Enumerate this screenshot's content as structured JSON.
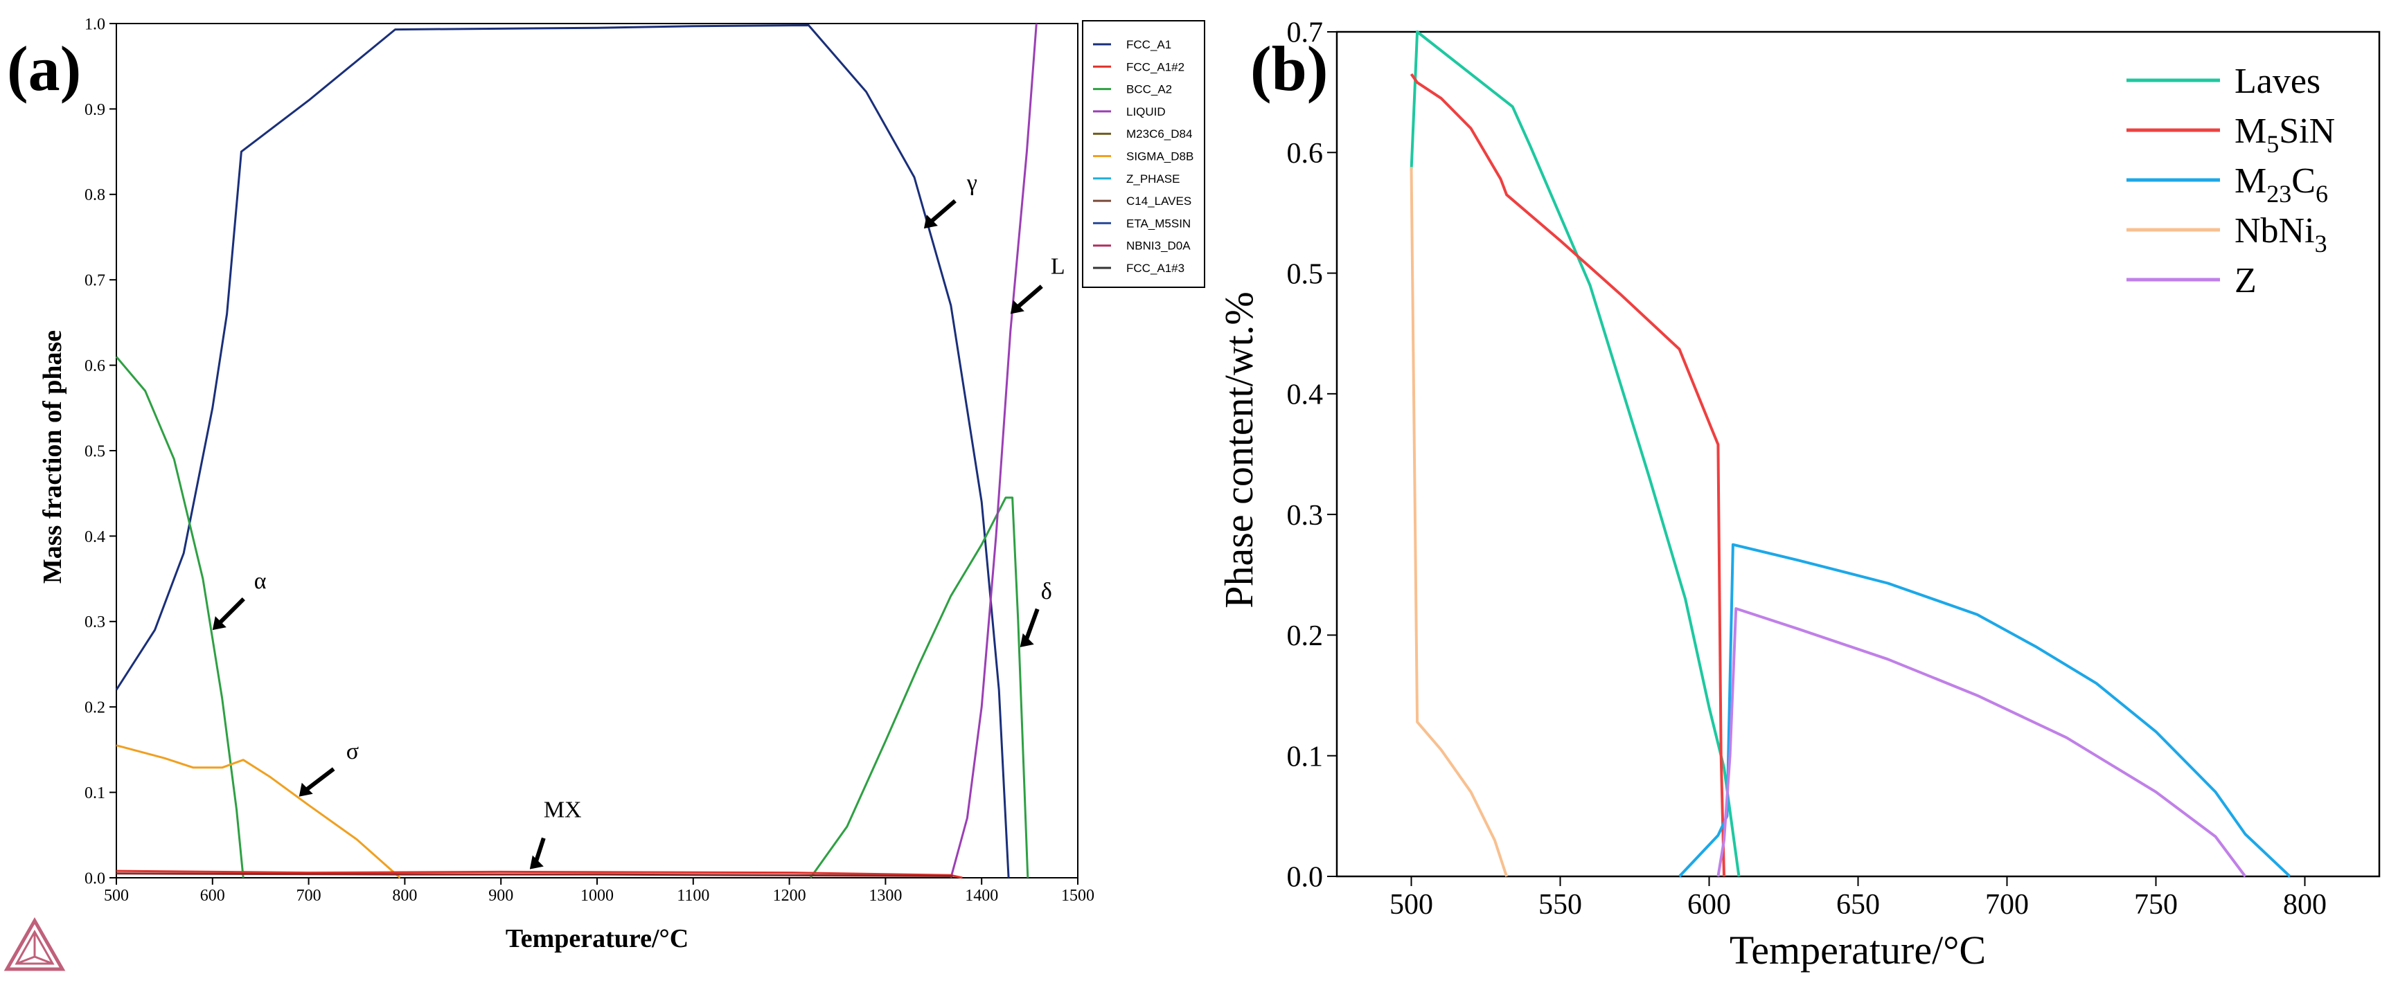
{
  "chart_data": [
    {
      "panel_label": "(a)",
      "type": "line",
      "title": "",
      "xlabel": "Temperature/°C",
      "ylabel": "Mass fraction of phase",
      "xlim": [
        500,
        1500
      ],
      "ylim": [
        0,
        1.0
      ],
      "xticks": [
        "500",
        "600",
        "700",
        "800",
        "900",
        "1000",
        "1100",
        "1200",
        "1300",
        "1400",
        "1500"
      ],
      "yticks": [
        "0.0",
        "0.1",
        "0.2",
        "0.3",
        "0.4",
        "0.5",
        "0.6",
        "0.7",
        "0.8",
        "0.9",
        "1.0"
      ],
      "legend": {
        "position": "right-outside",
        "entries": [
          {
            "label": "FCC_A1",
            "color": "#1a2f7a"
          },
          {
            "label": "FCC_A1#2",
            "color": "#e0302a"
          },
          {
            "label": "BCC_A2",
            "color": "#2ea043"
          },
          {
            "label": "LIQUID",
            "color": "#9b3fb5"
          },
          {
            "label": "M23C6_D84",
            "color": "#6b5a1e"
          },
          {
            "label": "SIGMA_D8B",
            "color": "#f0a020"
          },
          {
            "label": "Z_PHASE",
            "color": "#20b0d8"
          },
          {
            "label": "C14_LAVES",
            "color": "#7a4a3a"
          },
          {
            "label": "ETA_M5SIN",
            "color": "#2a4a9a"
          },
          {
            "label": "NBNI3_D0A",
            "color": "#b03060"
          },
          {
            "label": "FCC_A1#3",
            "color": "#333333"
          }
        ]
      },
      "series": [
        {
          "name": "FCC_A1",
          "color": "#1a2f7a",
          "points": [
            [
              500,
              0.22
            ],
            [
              540,
              0.29
            ],
            [
              570,
              0.38
            ],
            [
              600,
              0.55
            ],
            [
              615,
              0.66
            ],
            [
              630,
              0.85
            ],
            [
              700,
              0.91
            ],
            [
              790,
              0.993
            ],
            [
              1000,
              0.995
            ],
            [
              1100,
              0.997
            ],
            [
              1220,
              0.998
            ],
            [
              1280,
              0.92
            ],
            [
              1330,
              0.82
            ],
            [
              1368,
              0.67
            ],
            [
              1400,
              0.44
            ],
            [
              1418,
              0.22
            ],
            [
              1428,
              0.0
            ]
          ]
        },
        {
          "name": "BCC_A2 (α)",
          "color": "#2ea043",
          "points": [
            [
              500,
              0.61
            ],
            [
              530,
              0.57
            ],
            [
              560,
              0.49
            ],
            [
              590,
              0.35
            ],
            [
              610,
              0.21
            ],
            [
              625,
              0.08
            ],
            [
              632,
              0.0
            ]
          ]
        },
        {
          "name": "BCC_A2 (δ)",
          "color": "#2ea043",
          "points": [
            [
              1222,
              0.0
            ],
            [
              1260,
              0.06
            ],
            [
              1300,
              0.16
            ],
            [
              1335,
              0.25
            ],
            [
              1368,
              0.33
            ],
            [
              1400,
              0.39
            ],
            [
              1425,
              0.445
            ],
            [
              1432,
              0.445
            ],
            [
              1438,
              0.3
            ],
            [
              1448,
              0.0
            ]
          ]
        },
        {
          "name": "LIQUID",
          "color": "#9b3fb5",
          "points": [
            [
              1368,
              0.0
            ],
            [
              1385,
              0.07
            ],
            [
              1400,
              0.2
            ],
            [
              1415,
              0.4
            ],
            [
              1430,
              0.64
            ],
            [
              1447,
              0.85
            ],
            [
              1457,
              1.0
            ]
          ]
        },
        {
          "name": "SIGMA_D8B (σ)",
          "color": "#f0a020",
          "points": [
            [
              500,
              0.155
            ],
            [
              550,
              0.14
            ],
            [
              580,
              0.129
            ],
            [
              610,
              0.129
            ],
            [
              632,
              0.138
            ],
            [
              660,
              0.118
            ],
            [
              700,
              0.085
            ],
            [
              750,
              0.045
            ],
            [
              795,
              0.0
            ]
          ]
        },
        {
          "name": "MX",
          "color": "#e0302a",
          "points": [
            [
              500,
              0.008
            ],
            [
              700,
              0.006
            ],
            [
              900,
              0.007
            ],
            [
              1200,
              0.006
            ],
            [
              1368,
              0.003
            ],
            [
              1380,
              0.0
            ]
          ]
        },
        {
          "name": "FCC_A1#3",
          "color": "#8b2a2a",
          "points": [
            [
              500,
              0.005
            ],
            [
              800,
              0.004
            ],
            [
              1000,
              0.004
            ],
            [
              1370,
              0.002
            ]
          ]
        }
      ],
      "annotations": [
        {
          "text": "α",
          "x": 600,
          "y": 0.29
        },
        {
          "text": "σ",
          "x": 690,
          "y": 0.095
        },
        {
          "text": "MX",
          "x": 930,
          "y": 0.01
        },
        {
          "text": "γ",
          "x": 1340,
          "y": 0.76
        },
        {
          "text": "L",
          "x": 1430,
          "y": 0.66
        },
        {
          "text": "δ",
          "x": 1440,
          "y": 0.27
        }
      ]
    },
    {
      "panel_label": "(b)",
      "type": "line",
      "title": "",
      "xlabel": "Temperature/°C",
      "ylabel": "Phase content/wt.%",
      "xlim": [
        475,
        825
      ],
      "ylim": [
        0,
        0.7
      ],
      "xticks": [
        "500",
        "550",
        "600",
        "650",
        "700",
        "750",
        "800"
      ],
      "yticks": [
        "0.0",
        "0.1",
        "0.2",
        "0.3",
        "0.4",
        "0.5",
        "0.6",
        "0.7"
      ],
      "legend": {
        "position": "top-right",
        "entries": [
          {
            "base": "Laves",
            "sub": "",
            "rest": "",
            "color": "#1ec8a0"
          },
          {
            "base": "M",
            "sub": "5",
            "rest": "SiN",
            "color": "#ee4040"
          },
          {
            "base": "M",
            "sub": "23",
            "rest": "C",
            "sub2": "6",
            "color": "#1ca8e8"
          },
          {
            "base": "NbNi",
            "sub": "3",
            "rest": "",
            "color": "#f8c090"
          },
          {
            "base": "Z",
            "sub": "",
            "rest": "",
            "color": "#c080e8"
          }
        ]
      },
      "series": [
        {
          "name": "Laves",
          "color": "#1ec8a0",
          "points": [
            [
              500,
              0.585
            ],
            [
              502,
              0.7
            ],
            [
              534,
              0.638
            ],
            [
              540,
              0.605
            ],
            [
              560,
              0.49
            ],
            [
              580,
              0.33
            ],
            [
              592,
              0.23
            ],
            [
              600,
              0.14
            ],
            [
              605,
              0.09
            ],
            [
              610,
              0.0
            ]
          ]
        },
        {
          "name": "M5SiN",
          "color": "#ee4040",
          "points": [
            [
              500,
              0.665
            ],
            [
              502,
              0.658
            ],
            [
              510,
              0.645
            ],
            [
              520,
              0.62
            ],
            [
              530,
              0.578
            ],
            [
              532,
              0.565
            ],
            [
              550,
              0.527
            ],
            [
              570,
              0.483
            ],
            [
              590,
              0.437
            ],
            [
              601,
              0.37
            ],
            [
              603,
              0.358
            ],
            [
              604,
              0.1
            ],
            [
              605,
              0.0
            ]
          ]
        },
        {
          "name": "M23C6",
          "color": "#1ca8e8",
          "points": [
            [
              590,
              0.0
            ],
            [
              603,
              0.034
            ],
            [
              606,
              0.05
            ],
            [
              608,
              0.275
            ],
            [
              630,
              0.262
            ],
            [
              660,
              0.243
            ],
            [
              690,
              0.217
            ],
            [
              710,
              0.19
            ],
            [
              730,
              0.16
            ],
            [
              750,
              0.12
            ],
            [
              770,
              0.07
            ],
            [
              780,
              0.035
            ],
            [
              795,
              0.0
            ]
          ]
        },
        {
          "name": "NbNi3",
          "color": "#f8c090",
          "points": [
            [
              500,
              0.588
            ],
            [
              502,
              0.128
            ],
            [
              510,
              0.105
            ],
            [
              520,
              0.07
            ],
            [
              528,
              0.03
            ],
            [
              532,
              0.0
            ]
          ]
        },
        {
          "name": "Z",
          "color": "#c080e8",
          "points": [
            [
              603,
              0.0
            ],
            [
              605,
              0.03
            ],
            [
              607,
              0.1
            ],
            [
              609,
              0.222
            ],
            [
              630,
              0.205
            ],
            [
              660,
              0.18
            ],
            [
              690,
              0.15
            ],
            [
              720,
              0.115
            ],
            [
              750,
              0.07
            ],
            [
              770,
              0.033
            ],
            [
              780,
              0.0
            ]
          ]
        }
      ]
    }
  ]
}
